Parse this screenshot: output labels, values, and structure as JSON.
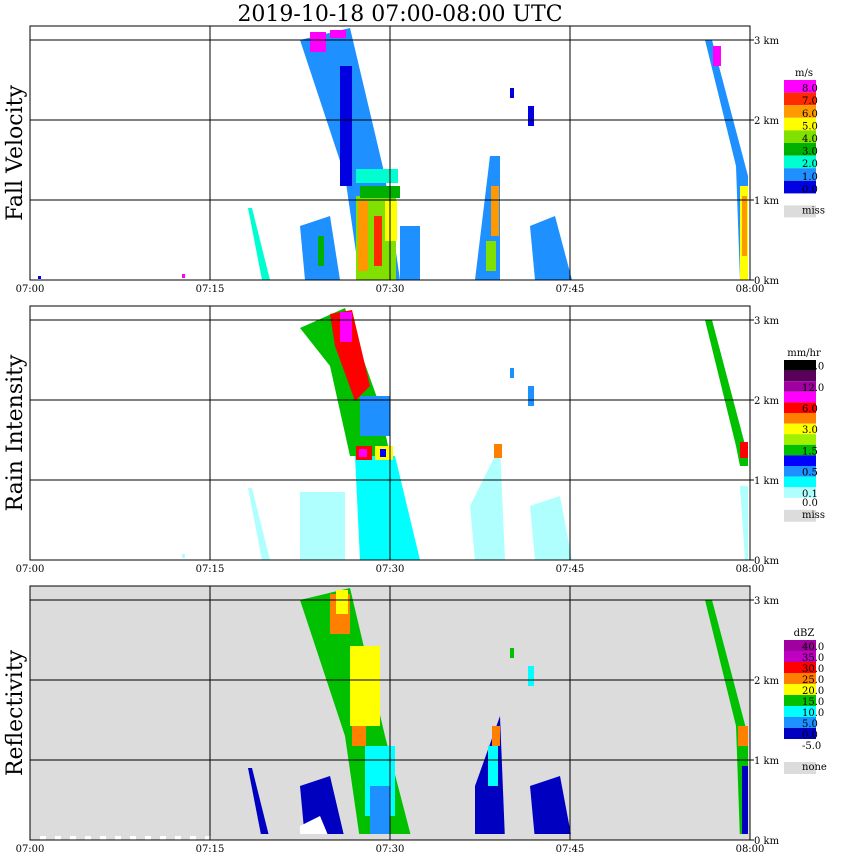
{
  "title": "2019-10-18   07:00-08:00 UTC",
  "chart_data": {
    "type": "heatmap",
    "x_ticks": [
      "07:00",
      "07:15",
      "07:30",
      "07:45",
      "08:00"
    ],
    "y_ticks": [
      "0 km",
      "1 km",
      "2 km",
      "3 km"
    ],
    "panels": [
      {
        "name": "Fall Velocity",
        "unit": "m/s",
        "legend": [
          {
            "label": "8.0",
            "color": "#ff00ff"
          },
          {
            "label": "7.0",
            "color": "#ff2a00"
          },
          {
            "label": "6.0",
            "color": "#ff9900"
          },
          {
            "label": "5.0",
            "color": "#ffff00"
          },
          {
            "label": "4.0",
            "color": "#80e000"
          },
          {
            "label": "3.0",
            "color": "#00b000"
          },
          {
            "label": "2.0",
            "color": "#00ffd0"
          },
          {
            "label": "1.0",
            "color": "#1e90ff"
          },
          {
            "label": "0.0",
            "color": "#0000e0"
          }
        ],
        "miss_label": "miss",
        "miss_color": "#dcdcdc",
        "background": "#ffffff"
      },
      {
        "name": "Rain Intensity",
        "unit": "mm/hr",
        "legend": [
          {
            "label": "48.0",
            "color": "#000000"
          },
          {
            "label": "",
            "color": "#5a005a"
          },
          {
            "label": "12.0",
            "color": "#a000a0"
          },
          {
            "label": "",
            "color": "#ff00ff"
          },
          {
            "label": "6.0",
            "color": "#ff0000"
          },
          {
            "label": "",
            "color": "#ff8000"
          },
          {
            "label": "3.0",
            "color": "#ffff00"
          },
          {
            "label": "",
            "color": "#a0f000"
          },
          {
            "label": "1.5",
            "color": "#00c000"
          },
          {
            "label": "",
            "color": "#0000ff"
          },
          {
            "label": "0.5",
            "color": "#1e90ff"
          },
          {
            "label": "",
            "color": "#00ffff"
          },
          {
            "label": "0.1",
            "color": "#b0ffff"
          }
        ],
        "zero_label": "0.0",
        "miss_label": "miss",
        "miss_color": "#dcdcdc",
        "background": "#ffffff"
      },
      {
        "name": "Reflectivity",
        "unit": "dBZ",
        "legend": [
          {
            "label": "40.0",
            "color": "#a000a0"
          },
          {
            "label": "35.0",
            "color": "#c000c0"
          },
          {
            "label": "30.0",
            "color": "#ff0000"
          },
          {
            "label": "25.0",
            "color": "#ff8000"
          },
          {
            "label": "20.0",
            "color": "#ffff00"
          },
          {
            "label": "15.0",
            "color": "#00c000"
          },
          {
            "label": "10.0",
            "color": "#00ffff"
          },
          {
            "label": "5.0",
            "color": "#1e90ff"
          },
          {
            "label": "0.0",
            "color": "#0000c0"
          },
          {
            "label": "-5.0",
            "color": "#ffffff"
          }
        ],
        "miss_label": "none",
        "miss_color": "#dcdcdc",
        "background": "#dcdcdc"
      }
    ]
  }
}
